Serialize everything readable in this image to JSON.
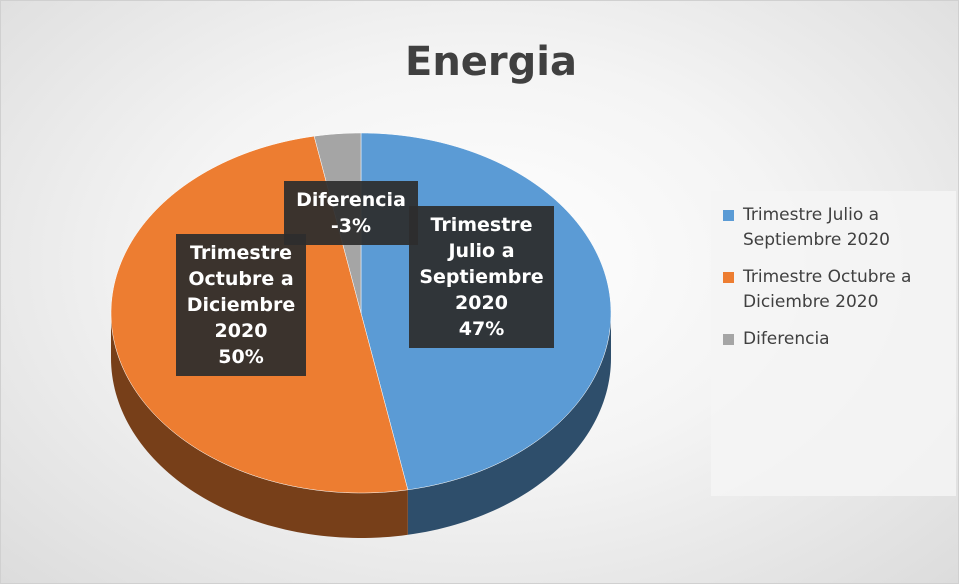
{
  "chart_data": {
    "type": "pie",
    "title": "Energia",
    "categories": [
      "Trimestre Julio a Septiembre 2020",
      "Trimestre Octubre a Diciembre 2020",
      "Diferencia"
    ],
    "values": [
      47,
      50,
      -3
    ],
    "value_labels": [
      "47%",
      "50%",
      "-3%"
    ],
    "colors": [
      "#5b9bd5",
      "#ed7d31",
      "#a5a5a5"
    ],
    "legend": "right"
  }
}
